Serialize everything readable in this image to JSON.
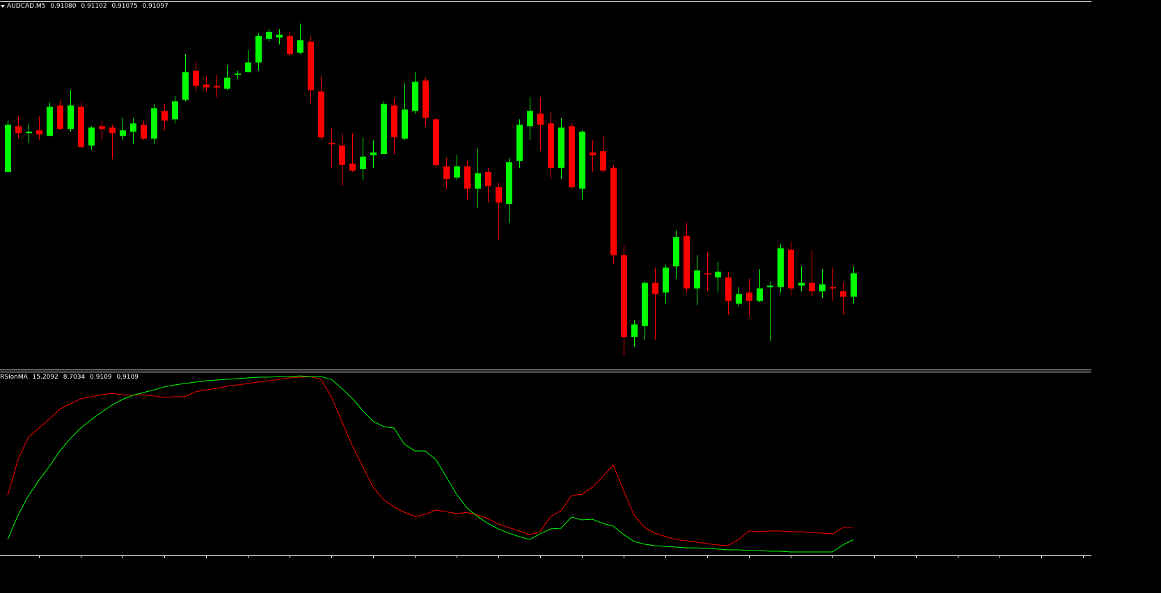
{
  "chart_data": [
    {
      "type": "candlestick",
      "title": "AUDCAD,M5",
      "header_values": [
        "0.91080",
        "0.91102",
        "0.91075",
        "0.91097"
      ],
      "ylim": [
        0.91028,
        0.91292
      ],
      "up_color": "#00ff00",
      "down_color": "#ff0000",
      "open": [
        0.9117,
        0.91203,
        0.91198,
        0.912,
        0.91196,
        0.91218,
        0.91201,
        0.91217,
        0.91189,
        0.91203,
        0.91202,
        0.91196,
        0.91199,
        0.91204,
        0.91194,
        0.91214,
        0.91208,
        0.91222,
        0.91243,
        0.91233,
        0.91232,
        0.9123,
        0.9124,
        0.91242,
        0.91249,
        0.91266,
        0.91267,
        0.91268,
        0.91256,
        0.91264,
        0.91228,
        0.91191,
        0.91189,
        0.91176,
        0.91172,
        0.91182,
        0.91183,
        0.91218,
        0.91194,
        0.91214,
        0.91236,
        0.91208,
        0.91174,
        0.91166,
        0.91174,
        0.91158,
        0.9117,
        0.91159,
        0.91147,
        0.91178,
        0.91203,
        0.91212,
        0.91205,
        0.91173,
        0.91203,
        0.91158,
        0.91184,
        0.91185,
        0.91173,
        0.9111,
        0.91051,
        0.91059,
        0.9109,
        0.91083,
        0.91102,
        0.91124,
        0.91086,
        0.91097,
        0.91094,
        0.91094,
        0.91075,
        0.91083,
        0.91077,
        0.91087,
        0.91087,
        0.91114,
        0.91088,
        0.9109,
        0.91084,
        0.91087,
        0.91084,
        0.9108
      ],
      "high": [
        0.91207,
        0.9121,
        0.91205,
        0.9121,
        0.9122,
        0.91222,
        0.91229,
        0.9122,
        0.91203,
        0.91207,
        0.91204,
        0.91209,
        0.91209,
        0.91207,
        0.91219,
        0.91219,
        0.91225,
        0.91255,
        0.91249,
        0.91239,
        0.9124,
        0.91247,
        0.91243,
        0.91258,
        0.9127,
        0.91273,
        0.91273,
        0.91271,
        0.91277,
        0.91268,
        0.91239,
        0.91202,
        0.91198,
        0.91198,
        0.91195,
        0.91193,
        0.91221,
        0.91223,
        0.91234,
        0.91242,
        0.91238,
        0.91209,
        0.9118,
        0.91182,
        0.91178,
        0.91187,
        0.91173,
        0.91162,
        0.9118,
        0.91208,
        0.91224,
        0.91224,
        0.91213,
        0.91209,
        0.91205,
        0.912,
        0.91193,
        0.91196,
        0.91175,
        0.91117,
        0.91063,
        0.91091,
        0.91101,
        0.91103,
        0.91128,
        0.91133,
        0.9111,
        0.91112,
        0.91105,
        0.91098,
        0.91087,
        0.91093,
        0.911,
        0.91091,
        0.91118,
        0.9112,
        0.91102,
        0.91114,
        0.911,
        0.91101,
        0.9109,
        0.91102
      ],
      "low": [
        0.9117,
        0.91194,
        0.91191,
        0.91193,
        0.91196,
        0.912,
        0.91199,
        0.91187,
        0.91186,
        0.91193,
        0.91179,
        0.91193,
        0.9119,
        0.91193,
        0.9119,
        0.912,
        0.91205,
        0.91221,
        0.91228,
        0.91228,
        0.91224,
        0.91229,
        0.91237,
        0.91242,
        0.91243,
        0.91264,
        0.91262,
        0.91253,
        0.91255,
        0.91219,
        0.91193,
        0.91173,
        0.9116,
        0.9117,
        0.91164,
        0.91173,
        0.91183,
        0.91183,
        0.91193,
        0.91212,
        0.91203,
        0.91173,
        0.91158,
        0.91164,
        0.9115,
        0.91144,
        0.91148,
        0.91121,
        0.91133,
        0.91173,
        0.91193,
        0.91185,
        0.91165,
        0.91165,
        0.91158,
        0.9115,
        0.9117,
        0.9117,
        0.91104,
        0.91037,
        0.91044,
        0.91049,
        0.91049,
        0.91075,
        0.91093,
        0.91083,
        0.91074,
        0.91084,
        0.91083,
        0.91067,
        0.91073,
        0.91066,
        0.91076,
        0.91048,
        0.91083,
        0.91081,
        0.91084,
        0.9108,
        0.91079,
        0.91077,
        0.91067,
        0.91075
      ],
      "close": [
        0.91204,
        0.91198,
        0.91199,
        0.91197,
        0.91217,
        0.91201,
        0.91218,
        0.91188,
        0.91202,
        0.91201,
        0.91198,
        0.912,
        0.91205,
        0.91194,
        0.91216,
        0.91207,
        0.91221,
        0.91242,
        0.91232,
        0.91231,
        0.91231,
        0.91238,
        0.91241,
        0.91249,
        0.91268,
        0.91271,
        0.91269,
        0.91255,
        0.91265,
        0.91229,
        0.91195,
        0.9119,
        0.91175,
        0.91171,
        0.91181,
        0.91184,
        0.91219,
        0.91195,
        0.91215,
        0.91235,
        0.91209,
        0.91175,
        0.91165,
        0.91174,
        0.91158,
        0.91169,
        0.9116,
        0.91148,
        0.91177,
        0.91204,
        0.91214,
        0.91204,
        0.91173,
        0.91202,
        0.91159,
        0.91199,
        0.91182,
        0.91171,
        0.9111,
        0.91051,
        0.9106,
        0.9109,
        0.91082,
        0.91101,
        0.91123,
        0.91086,
        0.91099,
        0.91096,
        0.91098,
        0.91077,
        0.91082,
        0.91077,
        0.91086,
        0.91088,
        0.91115,
        0.91086,
        0.9109,
        0.91084,
        0.91089,
        0.91086,
        0.9108,
        0.91097
      ]
    },
    {
      "type": "line",
      "title": "RSIonMA",
      "header_values": [
        0.9109,
        0.9109
      ],
      "ylim": [
        0,
        100
      ],
      "series": [
        {
          "color": "#ff0000",
          "values": [
            33.1,
            53.1,
            65.4,
            70.4,
            75.4,
            80.8,
            83.8,
            86.5,
            87.7,
            88.8,
            89.6,
            88.8,
            88.5,
            88.8,
            88.1,
            87.3,
            87.7,
            87.7,
            90.4,
            91.5,
            92.3,
            93.5,
            94.2,
            95.0,
            95.8,
            96.5,
            97.3,
            98.1,
            98.5,
            98.8,
            97.3,
            87.7,
            74.2,
            60.8,
            49.2,
            37.7,
            30.8,
            26.9,
            23.8,
            21.5,
            22.7,
            25.0,
            24.2,
            23.1,
            23.8,
            22.3,
            20.4,
            17.3,
            15.4,
            13.5,
            11.5,
            13.1,
            21.5,
            24.6,
            33.1,
            33.8,
            37.7,
            43.5,
            50.0,
            35.8,
            22.3,
            15.4,
            12.3,
            10.4,
            8.8,
            8.1,
            7.3,
            6.5,
            5.8,
            5.4,
            8.8,
            13.5,
            13.1,
            13.5,
            13.5,
            13.1,
            13.1,
            12.7,
            12.3,
            11.9,
            15.4,
            15.2092
          ]
        },
        {
          "color": "#00ff00",
          "values": [
            8.8,
            22.3,
            33.1,
            41.5,
            49.2,
            57.7,
            64.6,
            70.4,
            75.0,
            79.2,
            83.1,
            86.2,
            88.5,
            90.0,
            91.5,
            93.1,
            94.2,
            95.0,
            95.8,
            96.5,
            96.9,
            97.3,
            97.7,
            98.1,
            98.5,
            98.5,
            98.8,
            98.8,
            99.2,
            98.8,
            98.8,
            97.3,
            92.3,
            86.9,
            80.0,
            74.2,
            71.2,
            70.4,
            61.5,
            57.7,
            57.7,
            53.1,
            43.5,
            33.8,
            26.2,
            21.5,
            17.7,
            14.6,
            12.3,
            10.4,
            8.8,
            11.9,
            14.6,
            15.0,
            21.2,
            19.6,
            20.0,
            17.7,
            16.2,
            11.5,
            7.7,
            6.2,
            5.4,
            5.0,
            4.6,
            4.2,
            4.2,
            3.8,
            3.5,
            3.1,
            3.1,
            2.7,
            2.7,
            2.3,
            2.3,
            1.9,
            1.9,
            1.9,
            1.9,
            1.9,
            5.8,
            8.7034
          ]
        }
      ]
    }
  ]
}
